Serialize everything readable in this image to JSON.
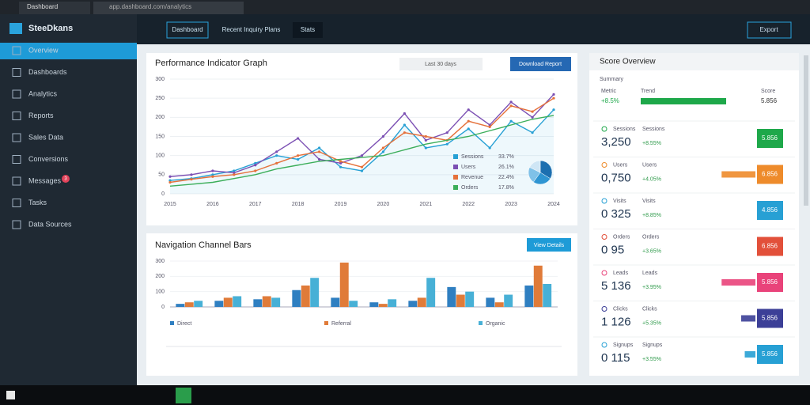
{
  "browser": {
    "tab": "Dashboard",
    "url": "app.dashboard.com/analytics"
  },
  "sidebar": {
    "brand": "SteeDkans",
    "items": [
      "Overview",
      "Dashboards",
      "Analytics",
      "Reports",
      "Sales Data",
      "Conversions",
      "Messages",
      "Tasks",
      "Data Sources"
    ],
    "badge": "3"
  },
  "topbar": {
    "tabs": [
      "Dashboard",
      "Recent Inquiry Plans",
      "Stats"
    ],
    "button": "Export"
  },
  "line_panel": {
    "title": "Performance Indicator Graph",
    "range": "Last 30 days",
    "button": "Download Report"
  },
  "bar_panel": {
    "title": "Navigation Channel Bars",
    "button": "View Details"
  },
  "score_panel": {
    "title": "Score Overview",
    "subtitle": "Summary",
    "header": [
      "Metric",
      "Trend",
      "Score"
    ],
    "header_value": "+8.5%",
    "header_progress": 100,
    "header_score": "5.856",
    "rows": [
      {
        "label": "Sessions",
        "value": "3,250",
        "change": "+8.55%",
        "progress": 0,
        "score": "5.856",
        "color": "#1ea84a"
      },
      {
        "label": "Users",
        "value": "0,750",
        "change": "+4.05%",
        "progress": 95,
        "score": "6.856",
        "color": "#ee8b2b"
      },
      {
        "label": "Visits",
        "value": "0 325",
        "change": "+8.85%",
        "progress": 0,
        "score": "4.856",
        "color": "#27a0d4"
      },
      {
        "label": "Orders",
        "value": "0 95",
        "change": "+3.65%",
        "progress": 0,
        "score": "6.856",
        "color": "#e2503a"
      },
      {
        "label": "Leads",
        "value": "5 136",
        "change": "+3.95%",
        "progress": 95,
        "score": "5.856",
        "color": "#e9437a"
      },
      {
        "label": "Clicks",
        "value": "1 126",
        "change": "+5.35%",
        "progress": 40,
        "score": "5.856",
        "color": "#3c3f97"
      },
      {
        "label": "Signups",
        "value": "0 115",
        "change": "+3.55%",
        "progress": 30,
        "score": "5.856",
        "color": "#27a0d4"
      }
    ]
  },
  "chart_data": [
    {
      "type": "line",
      "categories": [
        "2015",
        null,
        "2016",
        null,
        "2017",
        null,
        "2018",
        null,
        "2019",
        null,
        "2020",
        null,
        "2021",
        null,
        "2022",
        null,
        "2023",
        null,
        "2024"
      ],
      "ylim": [
        0,
        300
      ],
      "yticks": [
        0,
        50,
        100,
        150,
        200,
        250,
        300
      ],
      "grid": true,
      "series": [
        {
          "name": "Sessions",
          "color": "#27a0d4",
          "values": [
            35,
            40,
            50,
            60,
            80,
            100,
            90,
            120,
            70,
            60,
            110,
            180,
            120,
            130,
            170,
            120,
            190,
            160,
            220
          ]
        },
        {
          "name": "Users",
          "color": "#7b4fb3",
          "values": [
            45,
            50,
            60,
            55,
            75,
            110,
            145,
            90,
            80,
            100,
            150,
            210,
            140,
            160,
            220,
            180,
            240,
            200,
            260
          ]
        },
        {
          "name": "Revenue",
          "color": "#e5713b",
          "values": [
            30,
            38,
            45,
            50,
            60,
            80,
            100,
            110,
            85,
            70,
            120,
            160,
            150,
            140,
            190,
            175,
            230,
            215,
            250
          ]
        },
        {
          "name": "Orders",
          "color": "#3cae5a",
          "values": [
            20,
            25,
            30,
            40,
            50,
            65,
            75,
            85,
            90,
            95,
            100,
            115,
            130,
            140,
            150,
            165,
            180,
            195,
            205
          ]
        }
      ]
    },
    {
      "type": "pie",
      "values": [
        33.7,
        26.1,
        22.4,
        17.8
      ],
      "value_labels": [
        "33.7%",
        "26.1%",
        "22.4%",
        "17.8%"
      ],
      "colors": [
        "#1c6fb0",
        "#2f95d2",
        "#7fc1e8",
        "#cfe6f5"
      ]
    },
    {
      "type": "bar",
      "categories": [
        null,
        null,
        null,
        null,
        null,
        null,
        null,
        null,
        null,
        null
      ],
      "ylim": [
        0,
        300
      ],
      "yticks": [
        0,
        100,
        200,
        300
      ],
      "series": [
        {
          "name": "Direct",
          "color": "#2f7fc1",
          "values": [
            20,
            40,
            50,
            110,
            60,
            30,
            40,
            130,
            60,
            140
          ]
        },
        {
          "name": "Referral",
          "color": "#e07b39",
          "values": [
            30,
            60,
            70,
            140,
            290,
            20,
            60,
            80,
            30,
            270
          ]
        },
        {
          "name": "Organic",
          "color": "#47b0d6",
          "values": [
            40,
            70,
            60,
            190,
            40,
            50,
            190,
            100,
            80,
            150
          ]
        }
      ]
    }
  ]
}
